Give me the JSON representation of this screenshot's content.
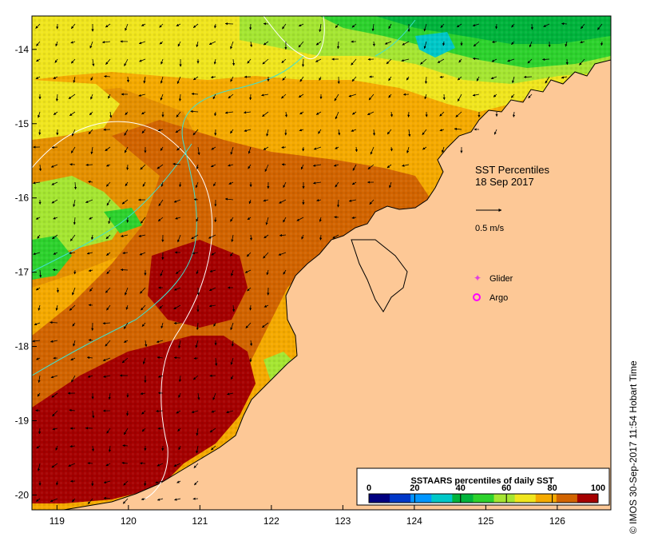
{
  "title": {
    "line1": "SST Percentiles",
    "line2": "18 Sep 2017"
  },
  "scale": {
    "label": "0.5 m/s",
    "value": 0.5
  },
  "legend": {
    "glider": "Glider",
    "argo": "Argo",
    "glider_color": "#e040e0",
    "argo_color": "#ff00ff"
  },
  "axes": {
    "x_ticks": [
      "119",
      "120",
      "121",
      "122",
      "123",
      "124",
      "125",
      "126"
    ],
    "y_ticks": [
      "-14",
      "-15",
      "-16",
      "-17",
      "-18",
      "-19",
      "-20"
    ],
    "xlim": [
      118.65,
      126.75
    ],
    "ylim": [
      -20.2,
      -13.55
    ]
  },
  "colorbar": {
    "title": "SSTAARS percentiles of daily SST",
    "labels": [
      "0",
      "20",
      "40",
      "60",
      "80",
      "100"
    ],
    "colors": [
      "#000080",
      "#0037c8",
      "#0096ff",
      "#00c8c8",
      "#00b43c",
      "#2dd22d",
      "#a5e632",
      "#f0e61e",
      "#f5aa00",
      "#d26400",
      "#a50000"
    ]
  },
  "credit": "© IMOS 30-Sep-2017 11:54 Hobart Time",
  "colors": {
    "land": "#fdc896",
    "contour": "#ffffff",
    "track": "#40e0d0",
    "coast": "#000000"
  }
}
